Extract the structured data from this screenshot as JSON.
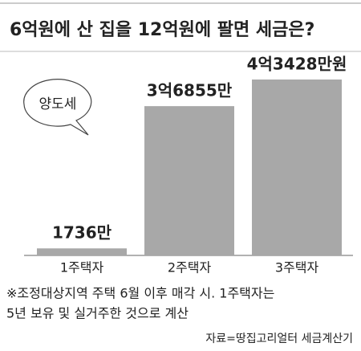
{
  "chart_data": {
    "type": "bar",
    "title": "6억원에 산 집을 12억원에 팔면 세금은?",
    "annotation": "양도세",
    "categories": [
      "1주택자",
      "2주택자",
      "3주택자"
    ],
    "values": [
      1736,
      36855,
      43428
    ],
    "value_labels": [
      "1736만",
      "3억6855만",
      "4억3428만원"
    ],
    "color": "#a8a8a8",
    "note": [
      "※조정대상지역 주택 6월 이후 매각 시. 1주택자는",
      "5년 보유 및 실거주한 것으로 계산"
    ],
    "source": "자료=땅집고리얼터 세금계산기"
  }
}
